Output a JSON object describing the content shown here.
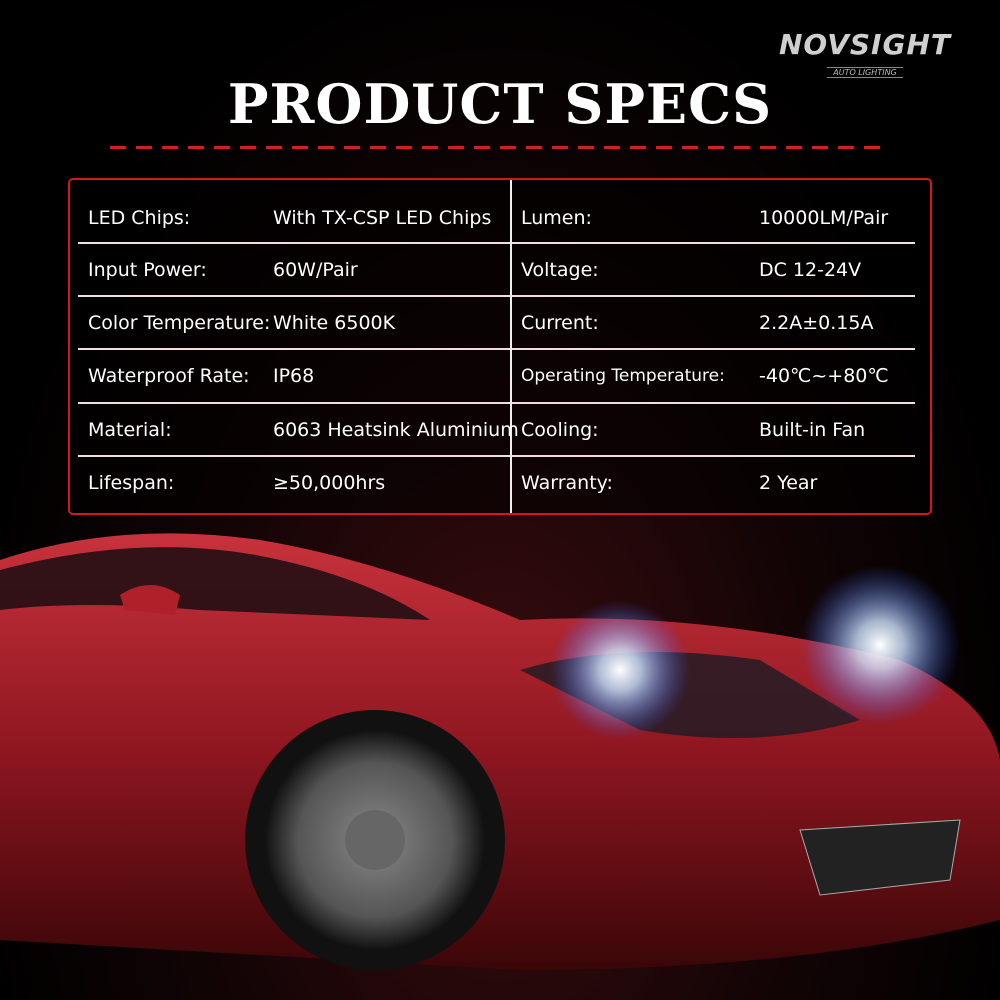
{
  "brand": {
    "name": "NOVSIGHT",
    "tagline": "AUTO LIGHTING"
  },
  "title": "PRODUCT SPECS",
  "colors": {
    "accent": "#d6161c",
    "background": "#000000",
    "text": "#ffffff"
  },
  "specs_left": [
    {
      "label": "LED Chips:",
      "value": "With TX-CSP LED Chips"
    },
    {
      "label": "Input Power:",
      "value": "60W/Pair"
    },
    {
      "label": "Color Temperature:",
      "value": "White 6500K"
    },
    {
      "label": "Waterproof Rate:",
      "value": "IP68"
    },
    {
      "label": "Material:",
      "value": "6063 Heatsink Aluminium"
    },
    {
      "label": "Lifespan:",
      "value": "≥50,000hrs"
    }
  ],
  "specs_right": [
    {
      "label": "Lumen:",
      "value": "10000LM/Pair"
    },
    {
      "label": "Voltage:",
      "value": "DC 12-24V"
    },
    {
      "label": "Current:",
      "value": "2.2A±0.15A"
    },
    {
      "label": "Operating Temperature:",
      "value": "-40℃~+80℃"
    },
    {
      "label": "Cooling:",
      "value": "Built-in Fan"
    },
    {
      "label": "Warranty:",
      "value": "2 Year"
    }
  ]
}
